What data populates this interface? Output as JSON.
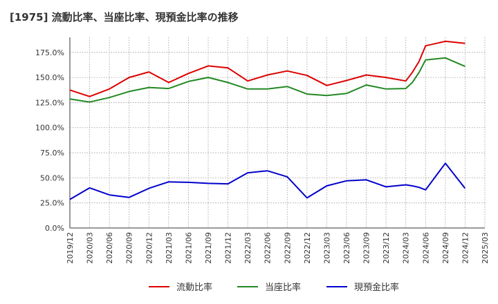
{
  "chart_data": {
    "type": "line",
    "title": "[1975]  流動比率、当座比率、現預金比率の推移",
    "xlabel": "",
    "ylabel": "",
    "ylim": [
      0,
      190
    ],
    "yticks": [
      0,
      25,
      50,
      75,
      100,
      125,
      150,
      175
    ],
    "ytick_labels": [
      "0.0%",
      "25.0%",
      "50.0%",
      "75.0%",
      "100.0%",
      "125.0%",
      "150.0%",
      "175.0%"
    ],
    "x_tick_labels": [
      "2019/12",
      "2020/03",
      "2020/06",
      "2020/09",
      "2020/12",
      "2021/03",
      "2021/06",
      "2021/09",
      "2021/12",
      "2022/03",
      "2022/06",
      "2022/09",
      "2022/12",
      "2023/03",
      "2023/06",
      "2023/09",
      "2023/12",
      "2024/03",
      "2024/06",
      "2024/09",
      "2024/12",
      "2025/03"
    ],
    "x": [
      "2019/12",
      "2020/03",
      "2020/06",
      "2020/09",
      "2020/12",
      "2021/03",
      "2021/06",
      "2021/09",
      "2021/12",
      "2022/03",
      "2022/06",
      "2022/09",
      "2022/12",
      "2023/03",
      "2023/06",
      "2023/09",
      "2023/12",
      "2024/03",
      "2024/04",
      "2024/05",
      "2024/06",
      "2024/09",
      "2024/12"
    ],
    "x_index": [
      0,
      1,
      2,
      3,
      4,
      5,
      6,
      7,
      8,
      9,
      10,
      11,
      12,
      13,
      14,
      15,
      16,
      17,
      17.33,
      17.67,
      18,
      19,
      20
    ],
    "grid": true,
    "legend_position": "bottom",
    "series": [
      {
        "name": "流動比率",
        "color": "#dd0000",
        "values": [
          137.5,
          131.0,
          138.5,
          150.0,
          155.5,
          145.0,
          154.0,
          161.5,
          159.5,
          146.5,
          152.5,
          156.5,
          152.0,
          142.0,
          147.0,
          152.5,
          150.0,
          146.5,
          155.0,
          166.0,
          181.5,
          186.0,
          184.0
        ]
      },
      {
        "name": "当座比率",
        "color": "#228822",
        "values": [
          128.5,
          125.5,
          130.0,
          136.0,
          140.0,
          139.0,
          146.0,
          150.0,
          145.0,
          138.5,
          138.5,
          141.0,
          133.5,
          132.0,
          134.0,
          142.5,
          138.5,
          139.0,
          145.0,
          155.0,
          167.5,
          169.5,
          161.0
        ]
      },
      {
        "name": "現預金比率",
        "color": "#0000cc",
        "values": [
          28.5,
          40.0,
          33.0,
          30.5,
          39.5,
          46.0,
          45.5,
          44.5,
          44.0,
          55.0,
          57.0,
          51.0,
          30.0,
          42.0,
          47.0,
          48.0,
          41.0,
          43.0,
          42.0,
          40.5,
          38.0,
          64.5,
          39.5
        ]
      }
    ]
  }
}
